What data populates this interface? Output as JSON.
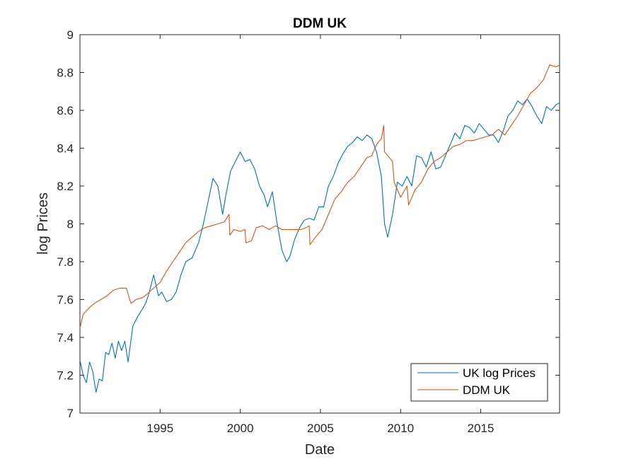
{
  "chart_data": {
    "type": "line",
    "title": "DDM UK",
    "xlabel": "Date",
    "ylabel": "log Prices",
    "xlim": [
      1990.0,
      2019.917
    ],
    "ylim": [
      7,
      9
    ],
    "x_ticks": [
      1995,
      2000,
      2005,
      2010,
      2015
    ],
    "x_tick_labels": [
      "1995",
      "2000",
      "2005",
      "2010",
      "2015"
    ],
    "y_ticks": [
      7,
      7.2,
      7.4,
      7.6,
      7.8,
      8,
      8.2,
      8.4,
      8.6,
      8.8,
      9
    ],
    "y_tick_labels": [
      "7",
      "7.2",
      "7.4",
      "7.6",
      "7.8",
      "8",
      "8.2",
      "8.4",
      "8.6",
      "8.8",
      "9"
    ],
    "grid": false,
    "legend_position": "bottom-right",
    "colors": {
      "uk_log_prices": "#0072BD",
      "ddm_uk": "#D95319",
      "axes": "#262626"
    },
    "series": [
      {
        "name": "UK log Prices",
        "color": "#0072BD",
        "x": [
          1990.0,
          1990.2,
          1990.4,
          1990.6,
          1990.8,
          1991.0,
          1991.2,
          1991.4,
          1991.6,
          1991.8,
          1992.0,
          1992.2,
          1992.4,
          1992.6,
          1992.8,
          1993.0,
          1993.3,
          1993.6,
          1993.9,
          1994.1,
          1994.3,
          1994.6,
          1994.9,
          1995.1,
          1995.4,
          1995.7,
          1996.0,
          1996.3,
          1996.6,
          1997.0,
          1997.4,
          1997.7,
          1998.0,
          1998.3,
          1998.6,
          1998.9,
          1999.1,
          1999.4,
          1999.7,
          2000.0,
          2000.3,
          2000.6,
          2000.9,
          2001.2,
          2001.5,
          2001.7,
          2002.0,
          2002.3,
          2002.6,
          2002.9,
          2003.1,
          2003.4,
          2003.7,
          2004.0,
          2004.3,
          2004.6,
          2004.9,
          2005.2,
          2005.5,
          2005.8,
          2006.1,
          2006.4,
          2006.7,
          2007.0,
          2007.3,
          2007.6,
          2007.9,
          2008.2,
          2008.5,
          2008.8,
          2009.0,
          2009.2,
          2009.5,
          2009.8,
          2010.1,
          2010.4,
          2010.7,
          2011.0,
          2011.3,
          2011.6,
          2011.9,
          2012.2,
          2012.5,
          2012.8,
          2013.1,
          2013.4,
          2013.7,
          2014.0,
          2014.3,
          2014.6,
          2014.9,
          2015.2,
          2015.5,
          2015.8,
          2016.1,
          2016.4,
          2016.7,
          2017.0,
          2017.3,
          2017.6,
          2017.9,
          2018.2,
          2018.5,
          2018.8,
          2019.1,
          2019.4,
          2019.7,
          2019.917
        ],
        "values": [
          7.28,
          7.2,
          7.16,
          7.27,
          7.22,
          7.11,
          7.18,
          7.17,
          7.32,
          7.31,
          7.37,
          7.29,
          7.38,
          7.33,
          7.38,
          7.27,
          7.46,
          7.51,
          7.55,
          7.58,
          7.63,
          7.73,
          7.62,
          7.64,
          7.59,
          7.6,
          7.64,
          7.73,
          7.8,
          7.82,
          7.9,
          8.0,
          8.12,
          8.24,
          8.2,
          8.05,
          8.15,
          8.28,
          8.33,
          8.38,
          8.33,
          8.34,
          8.29,
          8.2,
          8.15,
          8.09,
          8.17,
          8.0,
          7.86,
          7.8,
          7.83,
          7.92,
          7.98,
          8.02,
          8.03,
          8.02,
          8.09,
          8.09,
          8.2,
          8.25,
          8.32,
          8.37,
          8.41,
          8.43,
          8.46,
          8.44,
          8.47,
          8.45,
          8.38,
          8.25,
          8.0,
          7.93,
          8.05,
          8.22,
          8.2,
          8.25,
          8.2,
          8.36,
          8.35,
          8.3,
          8.38,
          8.29,
          8.3,
          8.36,
          8.42,
          8.48,
          8.45,
          8.52,
          8.51,
          8.48,
          8.53,
          8.5,
          8.47,
          8.47,
          8.43,
          8.49,
          8.57,
          8.6,
          8.65,
          8.63,
          8.66,
          8.62,
          8.57,
          8.53,
          8.62,
          8.6,
          8.63,
          8.64
        ]
      },
      {
        "name": "DDM UK",
        "color": "#D95319",
        "x": [
          1990.0,
          1990.2,
          1990.5,
          1990.9,
          1991.3,
          1991.7,
          1992.1,
          1992.5,
          1992.9,
          1993.1,
          1993.2,
          1993.5,
          1993.9,
          1994.2,
          1994.6,
          1995.0,
          1995.4,
          1995.8,
          1996.2,
          1996.6,
          1997.0,
          1997.4,
          1997.8,
          1998.2,
          1998.6,
          1999.0,
          1999.3,
          1999.35,
          1999.6,
          2000.0,
          2000.3,
          2000.35,
          2000.7,
          2001.0,
          2001.4,
          2001.8,
          2002.2,
          2002.6,
          2003.0,
          2003.4,
          2003.8,
          2004.1,
          2004.3,
          2004.35,
          2004.7,
          2005.1,
          2005.5,
          2005.9,
          2006.3,
          2006.7,
          2007.1,
          2007.5,
          2007.9,
          2008.2,
          2008.5,
          2008.8,
          2008.95,
          2009.0,
          2009.5,
          2009.6,
          2010.0,
          2010.4,
          2010.5,
          2010.9,
          2011.3,
          2011.7,
          2012.1,
          2012.5,
          2012.9,
          2013.3,
          2013.7,
          2014.1,
          2014.5,
          2014.9,
          2015.3,
          2015.7,
          2016.1,
          2016.5,
          2016.9,
          2017.3,
          2017.7,
          2018.1,
          2018.5,
          2018.9,
          2019.3,
          2019.7,
          2019.917
        ],
        "values": [
          7.45,
          7.52,
          7.55,
          7.58,
          7.6,
          7.62,
          7.65,
          7.66,
          7.66,
          7.6,
          7.58,
          7.6,
          7.61,
          7.63,
          7.66,
          7.69,
          7.75,
          7.8,
          7.85,
          7.9,
          7.93,
          7.96,
          7.98,
          7.99,
          8.0,
          8.01,
          8.05,
          7.94,
          7.97,
          7.96,
          7.97,
          7.9,
          7.91,
          7.98,
          7.99,
          7.97,
          7.99,
          7.97,
          7.97,
          7.97,
          7.97,
          7.98,
          7.99,
          7.89,
          7.93,
          7.97,
          8.05,
          8.13,
          8.17,
          8.22,
          8.25,
          8.3,
          8.35,
          8.36,
          8.42,
          8.45,
          8.52,
          8.38,
          8.33,
          8.22,
          8.14,
          8.2,
          8.1,
          8.18,
          8.22,
          8.29,
          8.33,
          8.35,
          8.38,
          8.41,
          8.42,
          8.44,
          8.44,
          8.45,
          8.46,
          8.47,
          8.5,
          8.47,
          8.52,
          8.57,
          8.63,
          8.69,
          8.72,
          8.76,
          8.84,
          8.83,
          8.84
        ]
      }
    ]
  }
}
